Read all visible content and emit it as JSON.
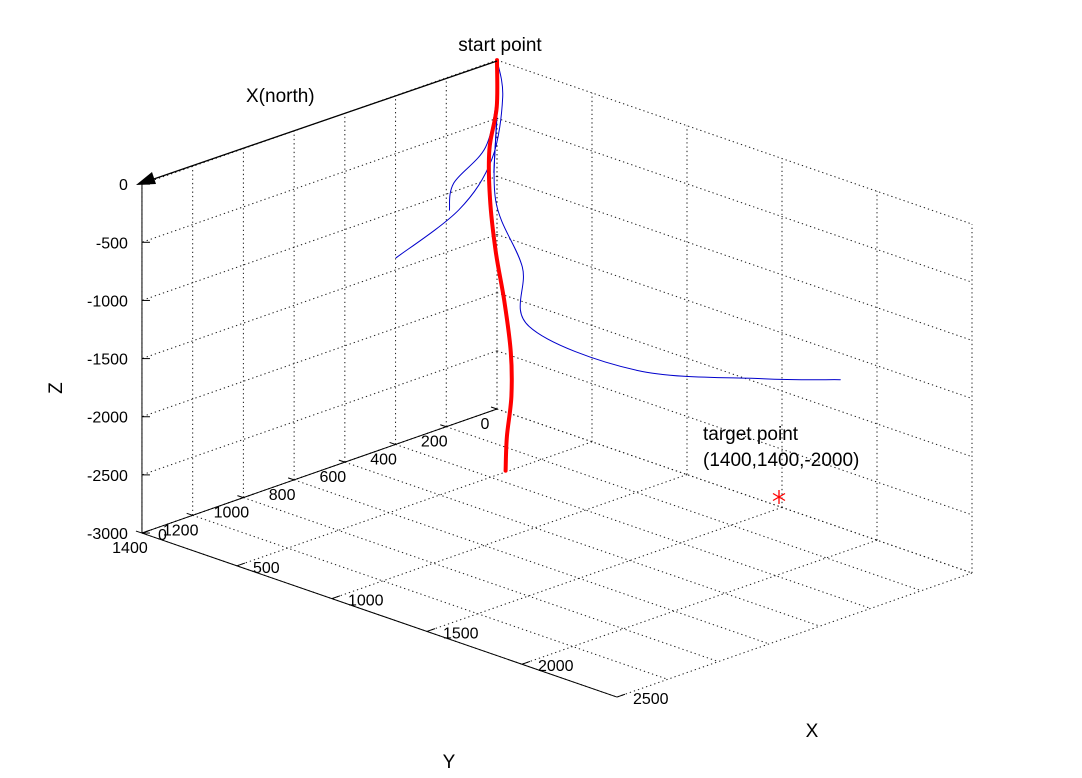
{
  "chart_data": {
    "type": "line3d",
    "x_axis": {
      "label": "X",
      "ticks": [
        0,
        500,
        1000,
        1500,
        2000,
        2500
      ],
      "range": [
        0,
        2500
      ]
    },
    "y_axis": {
      "label": "Y",
      "ticks": [
        0,
        200,
        400,
        600,
        800,
        1000,
        1200,
        1400
      ],
      "range": [
        0,
        1400
      ]
    },
    "z_axis": {
      "label": "Z",
      "ticks": [
        0,
        -500,
        -1000,
        -1500,
        -2000,
        -2500,
        -3000
      ],
      "range": [
        -3000,
        0
      ]
    },
    "grid": true,
    "annotations": {
      "start": "start point",
      "north": "X(north)",
      "target_line1": "target point",
      "target_line2": "(1400,1400,-2000)"
    },
    "target": {
      "x": 1400,
      "y": 1400,
      "z": -2000,
      "color": "#ff0000",
      "marker": "*"
    },
    "series": [
      {
        "color": "#ff0000",
        "width": 4,
        "points": [
          [
            0,
            0,
            0
          ],
          [
            5,
            5,
            -400
          ],
          [
            40,
            60,
            -700
          ],
          [
            150,
            140,
            -1000
          ],
          [
            300,
            230,
            -1300
          ],
          [
            480,
            330,
            -1560
          ],
          [
            700,
            470,
            -1760
          ],
          [
            930,
            640,
            -1880
          ],
          [
            1160,
            830,
            -1950
          ],
          [
            1380,
            1000,
            -1990
          ]
        ]
      },
      {
        "color": "#0000cc",
        "width": 1,
        "points": [
          [
            0,
            0,
            0
          ],
          [
            0,
            0,
            -300
          ],
          [
            100,
            120,
            -600
          ],
          [
            200,
            320,
            -700
          ],
          [
            350,
            450,
            -750
          ]
        ]
      },
      {
        "color": "#0000cc",
        "width": 1,
        "points": [
          [
            0,
            0,
            0
          ],
          [
            30,
            0,
            -300
          ],
          [
            120,
            110,
            -700
          ],
          [
            240,
            330,
            -900
          ],
          [
            350,
            660,
            -1000
          ]
        ]
      },
      {
        "color": "#0000cc",
        "width": 1,
        "points": [
          [
            0,
            0,
            0
          ],
          [
            40,
            30,
            -400
          ],
          [
            180,
            140,
            -1000
          ],
          [
            400,
            200,
            -1400
          ],
          [
            650,
            360,
            -1650
          ],
          [
            1000,
            200,
            -1950
          ],
          [
            1400,
            0,
            -1950
          ],
          [
            1700,
            -80,
            -1850
          ]
        ]
      },
      {
        "color": "#0000cc",
        "width": 1,
        "points": [
          [
            0,
            0,
            0
          ],
          [
            0,
            0,
            -400
          ],
          [
            50,
            50,
            -900
          ]
        ]
      }
    ]
  }
}
